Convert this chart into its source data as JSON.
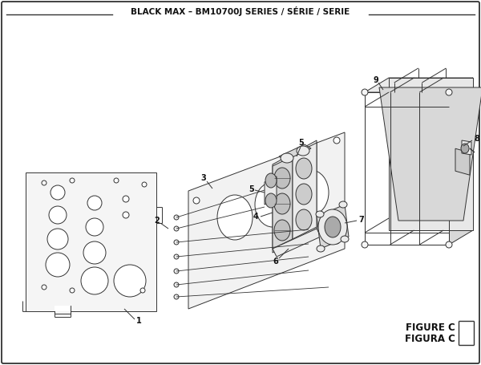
{
  "title": "BLACK MAX – BM10700J SERIES / SÉRIE / SERIE",
  "figure_label": "FIGURE C",
  "figura_label": "FIGURA C",
  "bg_color": "#ffffff",
  "lc": "#333333",
  "tc": "#111111",
  "fill_light": "#f5f5f5",
  "fill_mid": "#ebebeb",
  "fill_dark": "#d8d8d8"
}
